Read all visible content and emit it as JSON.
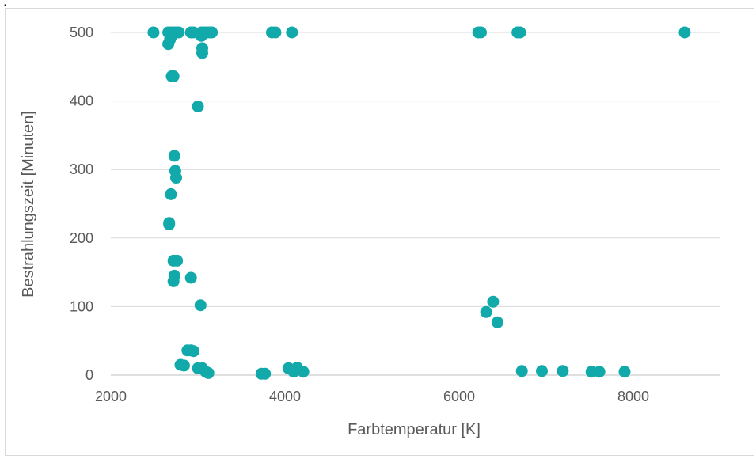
{
  "chart_data": {
    "type": "scatter",
    "title": "",
    "xlabel": "Farbtemperatur [K]",
    "ylabel": "Bestrahlungszeit [Minuten]",
    "xlim": [
      2000,
      9000
    ],
    "ylim": [
      0,
      500
    ],
    "xticks": [
      2000,
      4000,
      6000,
      8000
    ],
    "yticks": [
      0,
      100,
      200,
      300,
      400,
      500
    ],
    "grid": "horizontal",
    "legend": "none",
    "marker_color": "#12A9AA",
    "points": [
      [
        2490,
        500
      ],
      [
        2660,
        500
      ],
      [
        2690,
        500
      ],
      [
        2720,
        500
      ],
      [
        2750,
        500
      ],
      [
        2780,
        500
      ],
      [
        2920,
        500
      ],
      [
        2950,
        500
      ],
      [
        3040,
        500
      ],
      [
        3070,
        500
      ],
      [
        3100,
        500
      ],
      [
        3130,
        500
      ],
      [
        3160,
        500
      ],
      [
        3850,
        500
      ],
      [
        3890,
        500
      ],
      [
        4080,
        500
      ],
      [
        6220,
        500
      ],
      [
        6250,
        500
      ],
      [
        6670,
        500
      ],
      [
        6700,
        500
      ],
      [
        8590,
        500
      ],
      [
        2700,
        495
      ],
      [
        2680,
        490
      ],
      [
        2660,
        483
      ],
      [
        3040,
        495
      ],
      [
        3050,
        477
      ],
      [
        3050,
        470
      ],
      [
        2720,
        436
      ],
      [
        2700,
        436
      ],
      [
        3000,
        392
      ],
      [
        2730,
        320
      ],
      [
        2740,
        298
      ],
      [
        2750,
        288
      ],
      [
        2690,
        264
      ],
      [
        2670,
        222
      ],
      [
        2670,
        220
      ],
      [
        2720,
        167
      ],
      [
        2760,
        167
      ],
      [
        2730,
        145
      ],
      [
        2720,
        137
      ],
      [
        2920,
        142
      ],
      [
        3030,
        102
      ],
      [
        6390,
        107
      ],
      [
        6310,
        92
      ],
      [
        6440,
        77
      ],
      [
        2880,
        36
      ],
      [
        2920,
        36
      ],
      [
        2950,
        35
      ],
      [
        2800,
        15
      ],
      [
        2840,
        14
      ],
      [
        3000,
        10
      ],
      [
        3050,
        10
      ],
      [
        3090,
        5
      ],
      [
        3120,
        3
      ],
      [
        3730,
        2
      ],
      [
        3770,
        2
      ],
      [
        4040,
        10
      ],
      [
        4080,
        8
      ],
      [
        4140,
        11
      ],
      [
        4100,
        5
      ],
      [
        4210,
        5
      ],
      [
        6720,
        6
      ],
      [
        6950,
        6
      ],
      [
        7190,
        6
      ],
      [
        7520,
        5
      ],
      [
        7610,
        5
      ],
      [
        7900,
        5
      ]
    ]
  }
}
